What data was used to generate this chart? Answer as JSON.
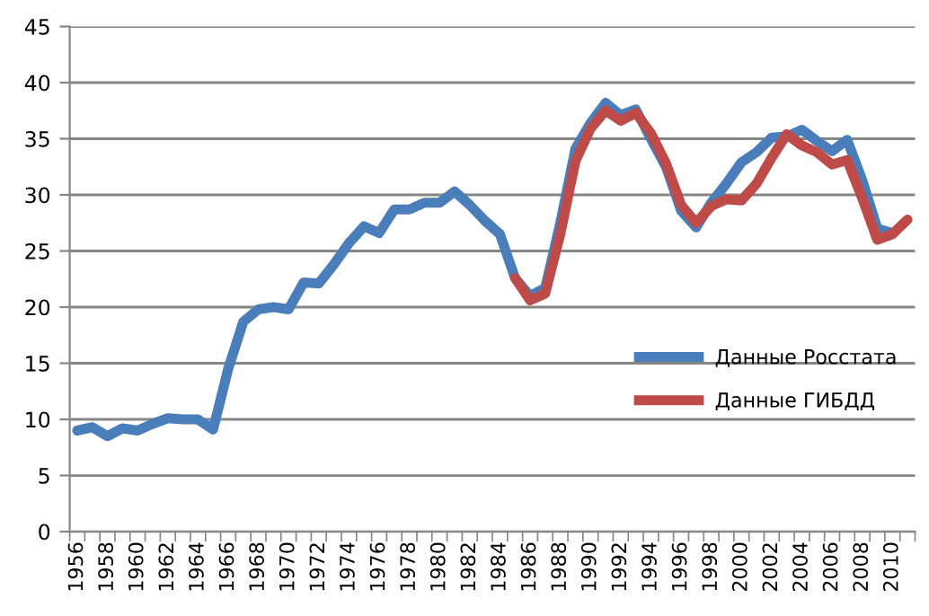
{
  "chart_data": {
    "type": "line",
    "categories": [
      "1956",
      null,
      "1958",
      null,
      "1960",
      null,
      "1962",
      null,
      "1964",
      null,
      "1966",
      null,
      "1968",
      null,
      "1970",
      null,
      "1972",
      null,
      "1974",
      null,
      "1976",
      null,
      "1978",
      null,
      "1980",
      null,
      "1982",
      null,
      "1984",
      null,
      "1986",
      null,
      "1988",
      null,
      "1990",
      null,
      "1992",
      null,
      "1994",
      null,
      "1996",
      null,
      "1998",
      null,
      "2000",
      null,
      "2002",
      null,
      "2004",
      null,
      "2006",
      null,
      "2008",
      null,
      "2010",
      null
    ],
    "series": [
      {
        "name": "Данные Росстата",
        "color": "#4a7ebb",
        "values": [
          9.0,
          9.3,
          8.5,
          9.2,
          9.0,
          9.6,
          10.1,
          10.0,
          10.0,
          9.1,
          14.5,
          18.7,
          19.8,
          20.0,
          19.8,
          22.2,
          22.1,
          23.8,
          25.7,
          27.2,
          26.6,
          28.7,
          28.7,
          29.3,
          29.3,
          30.3,
          29.1,
          27.7,
          26.5,
          22.6,
          21.0,
          21.7,
          27.5,
          34.1,
          36.4,
          38.2,
          37.1,
          37.6,
          35.0,
          32.5,
          28.6,
          27.1,
          29.3,
          31.0,
          32.9,
          33.8,
          35.1,
          35.2,
          35.8,
          34.8,
          33.9,
          34.9,
          31.3,
          27.0,
          26.6,
          null
        ]
      },
      {
        "name": "Данные ГИБДД",
        "color": "#be4b48",
        "values": [
          null,
          null,
          null,
          null,
          null,
          null,
          null,
          null,
          null,
          null,
          null,
          null,
          null,
          null,
          null,
          null,
          null,
          null,
          null,
          null,
          null,
          null,
          null,
          null,
          null,
          null,
          null,
          null,
          null,
          22.6,
          20.6,
          21.2,
          26.5,
          33.0,
          35.9,
          37.5,
          36.6,
          37.3,
          35.5,
          32.8,
          29.1,
          27.5,
          29.0,
          29.6,
          29.5,
          31.0,
          33.3,
          35.4,
          34.4,
          33.8,
          32.7,
          33.1,
          29.7,
          26.0,
          26.5,
          27.8
        ]
      }
    ],
    "ylim": [
      0,
      45
    ],
    "yticks": [
      0,
      5,
      10,
      15,
      20,
      25,
      30,
      35,
      40,
      45
    ],
    "grid": "y",
    "legend": "right",
    "marker": "none",
    "line_style": "solid"
  }
}
